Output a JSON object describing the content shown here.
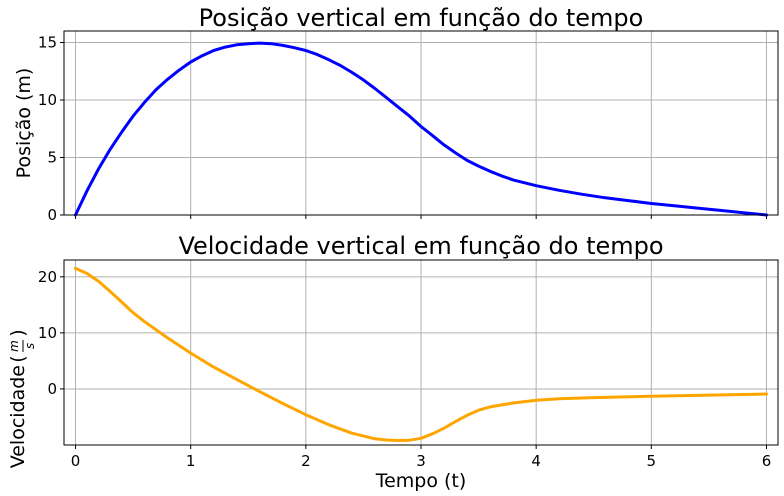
{
  "chart_data": [
    {
      "type": "line",
      "title": "Posição vertical em função do tempo",
      "xlabel": "",
      "ylabel": "Posição (m)",
      "xlim": [
        -0.1,
        6.1
      ],
      "ylim": [
        0,
        16
      ],
      "xticks": [
        0,
        1,
        2,
        3,
        4,
        5,
        6
      ],
      "yticks": [
        0,
        5,
        10,
        15
      ],
      "xtick_labels_visible": false,
      "grid": true,
      "series": [
        {
          "name": "posição",
          "color": "#0000ff",
          "x": [
            0,
            0.1,
            0.2,
            0.3,
            0.4,
            0.5,
            0.6,
            0.7,
            0.8,
            0.9,
            1.0,
            1.1,
            1.2,
            1.3,
            1.4,
            1.5,
            1.6,
            1.7,
            1.8,
            1.9,
            2.0,
            2.1,
            2.2,
            2.3,
            2.4,
            2.5,
            2.6,
            2.7,
            2.8,
            2.9,
            3.0,
            3.1,
            3.2,
            3.3,
            3.4,
            3.5,
            3.6,
            3.7,
            3.8,
            3.9,
            4.0,
            4.2,
            4.4,
            4.6,
            4.8,
            5.0,
            5.2,
            5.4,
            5.6,
            5.8,
            6.0
          ],
          "y": [
            0,
            2.1,
            4.0,
            5.7,
            7.2,
            8.6,
            9.8,
            10.9,
            11.8,
            12.6,
            13.3,
            13.85,
            14.3,
            14.6,
            14.8,
            14.9,
            14.95,
            14.9,
            14.75,
            14.55,
            14.3,
            13.95,
            13.5,
            13.0,
            12.4,
            11.75,
            11.0,
            10.2,
            9.4,
            8.6,
            7.7,
            6.9,
            6.1,
            5.4,
            4.75,
            4.25,
            3.8,
            3.4,
            3.05,
            2.8,
            2.55,
            2.15,
            1.8,
            1.5,
            1.25,
            1.0,
            0.8,
            0.6,
            0.4,
            0.2,
            0
          ]
        }
      ]
    },
    {
      "type": "line",
      "title": "Velocidade vertical em função do tempo",
      "xlabel": "Tempo (t)",
      "ylabel": "Velocidade",
      "ylabel_unit": {
        "numerator": "m",
        "denominator": "s"
      },
      "xlim": [
        -0.1,
        6.1
      ],
      "ylim": [
        -10,
        23
      ],
      "xticks": [
        0,
        1,
        2,
        3,
        4,
        5,
        6
      ],
      "yticks": [
        0,
        10,
        20
      ],
      "grid": true,
      "series": [
        {
          "name": "velocidade",
          "color": "#ffa500",
          "x": [
            0,
            0.1,
            0.2,
            0.3,
            0.4,
            0.5,
            0.6,
            0.8,
            1.0,
            1.2,
            1.4,
            1.6,
            1.8,
            2.0,
            2.2,
            2.4,
            2.6,
            2.7,
            2.8,
            2.9,
            3.0,
            3.1,
            3.2,
            3.3,
            3.4,
            3.5,
            3.6,
            3.8,
            4.0,
            4.2,
            4.5,
            5.0,
            5.5,
            6.0
          ],
          "y": [
            21.5,
            20.6,
            19.2,
            17.4,
            15.5,
            13.6,
            12.0,
            9.1,
            6.4,
            3.9,
            1.7,
            -0.5,
            -2.6,
            -4.6,
            -6.4,
            -7.9,
            -8.9,
            -9.1,
            -9.2,
            -9.15,
            -8.8,
            -8.0,
            -7.0,
            -5.8,
            -4.7,
            -3.8,
            -3.2,
            -2.5,
            -2.0,
            -1.75,
            -1.55,
            -1.3,
            -1.1,
            -0.9
          ]
        }
      ]
    }
  ]
}
